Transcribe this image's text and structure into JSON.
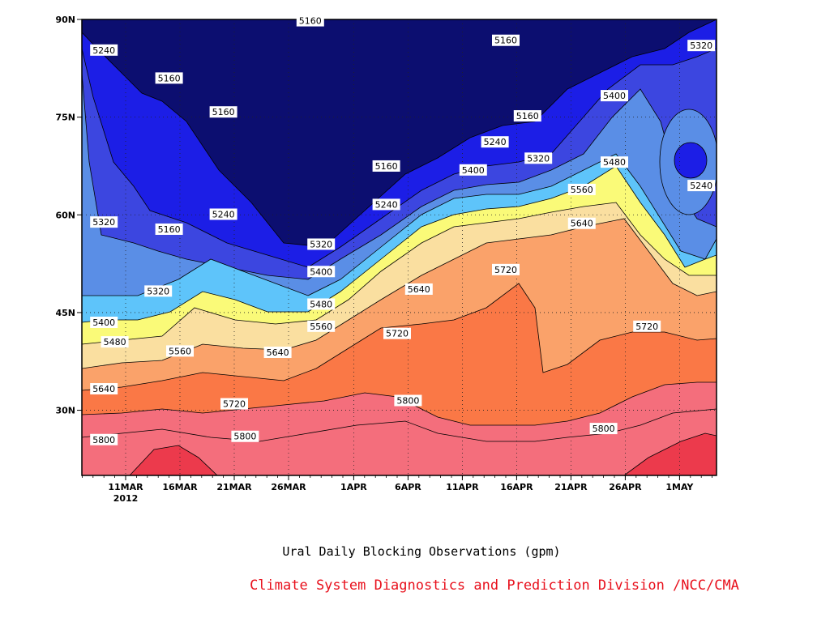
{
  "chart_data": {
    "type": "heatmap",
    "title": "",
    "xlabel": "",
    "ylabel": "",
    "x_axis": {
      "ticks": [
        "11MAR",
        "16MAR",
        "21MAR",
        "26MAR",
        "1APR",
        "6APR",
        "11APR",
        "16APR",
        "21APR",
        "26APR",
        "1MAY"
      ],
      "year_label": "2012"
    },
    "y_axis": {
      "ticks": [
        "90N",
        "75N",
        "60N",
        "45N",
        "30N"
      ],
      "values": [
        90,
        75,
        60,
        45,
        30
      ],
      "ylim": [
        20,
        90
      ]
    },
    "grid": true,
    "contour_levels": [
      5160,
      5240,
      5320,
      5400,
      5480,
      5560,
      5640,
      5720,
      5800
    ],
    "colors": [
      "#0c0e70",
      "#1c1ee6",
      "#3c46e0",
      "#5a8ee6",
      "#5ec4fa",
      "#fafa78",
      "#fadfa0",
      "#faa26a",
      "#fa7846",
      "#f46e7c",
      "#ec3a4c"
    ],
    "labels": [
      {
        "text": "5240",
        "date": "9MAR",
        "lat": 85.3
      },
      {
        "text": "5160",
        "date": "28MAR",
        "lat": 89.8
      },
      {
        "text": "5160",
        "date": "15APR",
        "lat": 86.8
      },
      {
        "text": "5320",
        "date": "3MAY",
        "lat": 86.0
      },
      {
        "text": "5160",
        "date": "15MAR",
        "lat": 81.0
      },
      {
        "text": "5160",
        "date": "20MAR",
        "lat": 75.8
      },
      {
        "text": "5400",
        "date": "25APR",
        "lat": 78.3
      },
      {
        "text": "5160",
        "date": "17APR",
        "lat": 75.2
      },
      {
        "text": "5240",
        "date": "14APR",
        "lat": 71.2
      },
      {
        "text": "5320",
        "date": "18APR",
        "lat": 68.7
      },
      {
        "text": "5480",
        "date": "25APR",
        "lat": 68.1
      },
      {
        "text": "5160",
        "date": "4APR",
        "lat": 67.5
      },
      {
        "text": "5400",
        "date": "12APR",
        "lat": 66.9
      },
      {
        "text": "5240",
        "date": "3MAY",
        "lat": 64.5
      },
      {
        "text": "5560",
        "date": "22APR",
        "lat": 63.9
      },
      {
        "text": "5240",
        "date": "4APR",
        "lat": 61.6
      },
      {
        "text": "5240",
        "date": "20MAR",
        "lat": 60.1
      },
      {
        "text": "5320",
        "date": "9MAR",
        "lat": 58.9
      },
      {
        "text": "5640",
        "date": "22APR",
        "lat": 58.7
      },
      {
        "text": "5160",
        "date": "15MAR",
        "lat": 57.8
      },
      {
        "text": "5320",
        "date": "29MAR",
        "lat": 55.5
      },
      {
        "text": "5720",
        "date": "15APR",
        "lat": 51.6
      },
      {
        "text": "5400",
        "date": "29MAR",
        "lat": 51.3
      },
      {
        "text": "5640",
        "date": "7APR",
        "lat": 48.6
      },
      {
        "text": "5320",
        "date": "14MAR",
        "lat": 48.3
      },
      {
        "text": "5480",
        "date": "29MAR",
        "lat": 46.3
      },
      {
        "text": "5400",
        "date": "9MAR",
        "lat": 43.5
      },
      {
        "text": "5560",
        "date": "29MAR",
        "lat": 42.9
      },
      {
        "text": "5720",
        "date": "28APR",
        "lat": 42.9
      },
      {
        "text": "5720",
        "date": "5APR",
        "lat": 41.8
      },
      {
        "text": "5480",
        "date": "10MAR",
        "lat": 40.5
      },
      {
        "text": "5560",
        "date": "16MAR",
        "lat": 39.1
      },
      {
        "text": "5640",
        "date": "25MAR",
        "lat": 38.9
      },
      {
        "text": "5640",
        "date": "9MAR",
        "lat": 33.3
      },
      {
        "text": "5800",
        "date": "6APR",
        "lat": 31.5
      },
      {
        "text": "5720",
        "date": "21MAR",
        "lat": 31.0
      },
      {
        "text": "5800",
        "date": "24APR",
        "lat": 27.2
      },
      {
        "text": "5800",
        "date": "9MAR",
        "lat": 25.5
      },
      {
        "text": "5800",
        "date": "22MAR",
        "lat": 26.0
      }
    ]
  },
  "captions": {
    "title": "Ural Daily Blocking Observations (gpm)",
    "credit": "Climate System Diagnostics and Prediction Division /NCC/CMA"
  }
}
